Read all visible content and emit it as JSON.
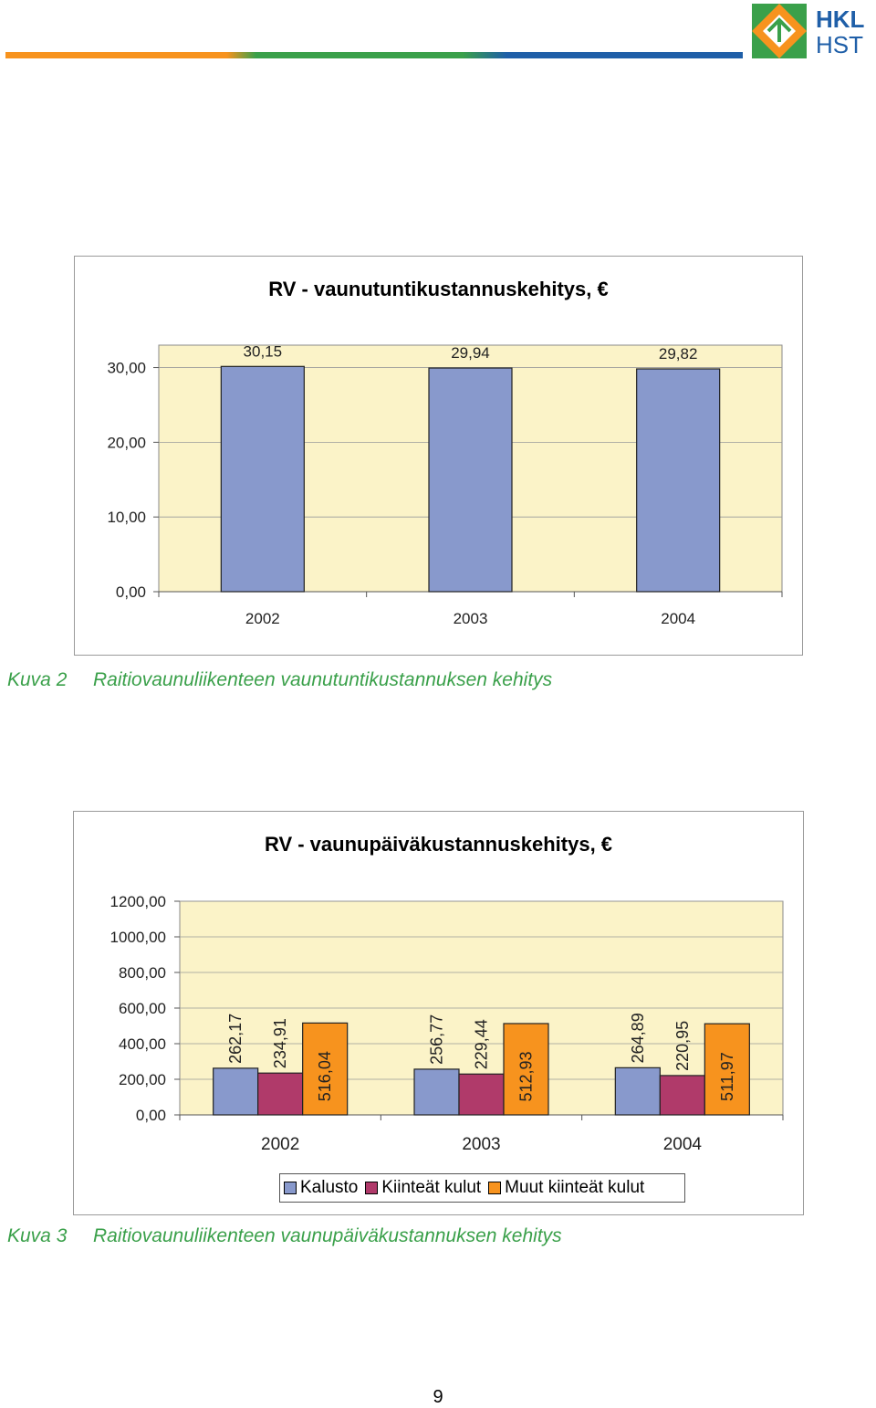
{
  "header": {
    "logo": {
      "line1": "HKL",
      "line2": "HST"
    },
    "colors": {
      "orange": "#f7931e",
      "green": "#3aa04a",
      "blue": "#1f5fa8"
    }
  },
  "chart_data": [
    {
      "type": "bar",
      "title": "RV - vaunutuntikustannuskehitys, €",
      "categories": [
        "2002",
        "2003",
        "2004"
      ],
      "values": [
        30.15,
        29.94,
        29.82
      ],
      "value_labels": [
        "30,15",
        "29,94",
        "29,82"
      ],
      "yticks": [
        "0,00",
        "10,00",
        "20,00",
        "30,00"
      ],
      "ylim": [
        0,
        30
      ],
      "xlabel": "",
      "ylabel": "",
      "grid": true,
      "colors": {
        "bar": "#8899cc",
        "plot_bg": "#fbf3c8"
      }
    },
    {
      "type": "bar",
      "title": "RV - vaunupäiväkustannuskehitys, €",
      "categories": [
        "2002",
        "2003",
        "2004"
      ],
      "series": [
        {
          "name": "Kalusto",
          "color": "#8899cc",
          "values": [
            262.17,
            256.77,
            264.89
          ],
          "labels": [
            "262,17",
            "256,77",
            "264,89"
          ]
        },
        {
          "name": "Kiinteät kulut",
          "color": "#b03a6a",
          "values": [
            234.91,
            229.44,
            220.95
          ],
          "labels": [
            "234,91",
            "229,44",
            "220,95"
          ]
        },
        {
          "name": "Muut kiinteät kulut",
          "color": "#f7931e",
          "values": [
            516.04,
            512.93,
            511.97
          ],
          "labels": [
            "516,04",
            "512,93",
            "511,97"
          ]
        }
      ],
      "yticks": [
        "0,00",
        "200,00",
        "400,00",
        "600,00",
        "800,00",
        "1000,00",
        "1200,00"
      ],
      "ylim": [
        0,
        1200
      ],
      "xlabel": "",
      "ylabel": "",
      "grid": true,
      "legend": "bottom",
      "colors": {
        "plot_bg": "#fbf3c8"
      }
    }
  ],
  "captions": [
    {
      "number": "Kuva 2",
      "text": "Raitiovaunuliikenteen vaunutuntikustannuksen kehitys"
    },
    {
      "number": "Kuva 3",
      "text": "Raitiovaunuliikenteen vaunupäiväkustannuksen kehitys"
    }
  ],
  "page_number": "9"
}
